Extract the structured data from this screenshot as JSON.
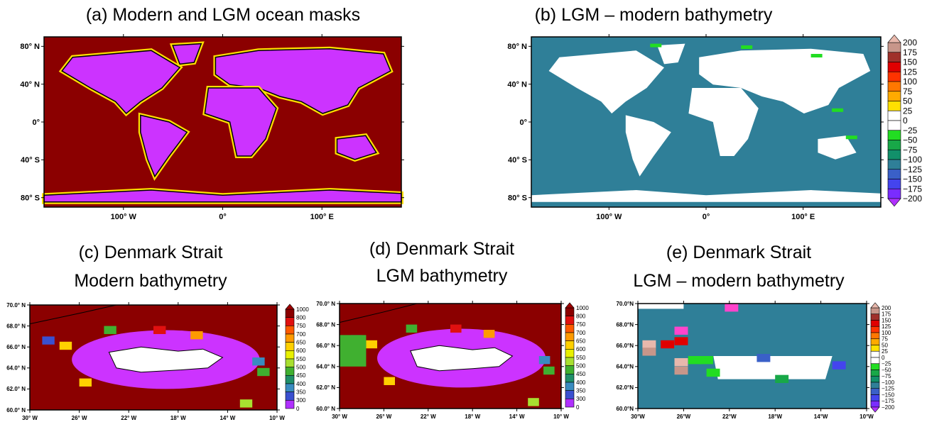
{
  "panels": [
    {
      "title": [
        "(a) Modern and LGM ocean masks"
      ],
      "yticks": [
        "80° N",
        "40° N",
        "0°",
        "40° S",
        "80° S"
      ],
      "xticks": [
        "100° W",
        "0°",
        "100° E"
      ]
    },
    {
      "title": [
        "(b) LGM – modern bathymetry"
      ],
      "yticks": [
        "80° N",
        "40° N",
        "0°",
        "40° S",
        "80° S"
      ],
      "xticks": [
        "100° W",
        "0°",
        "100° E"
      ],
      "colorbar": [
        "200",
        "175",
        "150",
        "125",
        "100",
        "75",
        "50",
        "25",
        "0",
        "−25",
        "−50",
        "−75",
        "−100",
        "−125",
        "−150",
        "−175",
        "−200"
      ]
    },
    {
      "title": [
        "(c) Denmark Strait",
        "Modern bathymetry"
      ],
      "yticks": [
        "70.0° N",
        "68.0° N",
        "66.0° N",
        "64.0° N",
        "62.0° N",
        "60.0° N"
      ],
      "xticks": [
        "30° W",
        "26° W",
        "22° W",
        "18° W",
        "14° W",
        "10° W"
      ],
      "colorbar": [
        "1000",
        "800",
        "750",
        "700",
        "650",
        "600",
        "550",
        "500",
        "450",
        "400",
        "350",
        "300",
        "0"
      ]
    },
    {
      "title": [
        "(d) Denmark Strait",
        "LGM bathymetry"
      ],
      "yticks": [
        "70.0° N",
        "68.0° N",
        "66.0° N",
        "64.0° N",
        "62.0° N",
        "60.0° N"
      ],
      "xticks": [
        "30° W",
        "26° W",
        "22° W",
        "18° W",
        "14° W",
        "10° W"
      ],
      "colorbar": [
        "1000",
        "800",
        "750",
        "700",
        "650",
        "600",
        "550",
        "500",
        "450",
        "400",
        "350",
        "300",
        "0"
      ]
    },
    {
      "title": [
        "(e) Denmark Strait",
        "LGM – modern bathymetry"
      ],
      "yticks": [
        "70.0°N",
        "68.0°N",
        "66.0°N",
        "64.0°N",
        "62.0°N",
        "60.0°N"
      ],
      "xticks": [
        "30°W",
        "26°W",
        "22°W",
        "18°W",
        "14°W",
        "10°W"
      ],
      "colorbar": [
        "200",
        "175",
        "150",
        "125",
        "100",
        "75",
        "50",
        "25",
        "0",
        "−25",
        "−50",
        "−75",
        "−100",
        "−125",
        "−150",
        "−175",
        "−200"
      ]
    }
  ]
}
